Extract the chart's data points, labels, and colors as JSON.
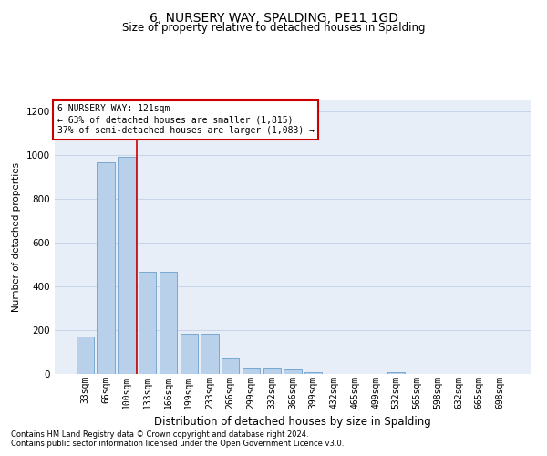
{
  "title": "6, NURSERY WAY, SPALDING, PE11 1GD",
  "subtitle": "Size of property relative to detached houses in Spalding",
  "xlabel": "Distribution of detached houses by size in Spalding",
  "ylabel": "Number of detached properties",
  "categories": [
    "33sqm",
    "66sqm",
    "100sqm",
    "133sqm",
    "166sqm",
    "199sqm",
    "233sqm",
    "266sqm",
    "299sqm",
    "332sqm",
    "366sqm",
    "399sqm",
    "432sqm",
    "465sqm",
    "499sqm",
    "532sqm",
    "565sqm",
    "598sqm",
    "632sqm",
    "665sqm",
    "698sqm"
  ],
  "values": [
    170,
    965,
    990,
    465,
    465,
    185,
    185,
    70,
    25,
    25,
    20,
    10,
    0,
    0,
    0,
    10,
    0,
    0,
    0,
    0,
    0
  ],
  "bar_color": "#b8d0ea",
  "bar_edge_color": "#6aa0cc",
  "grid_color": "#c8d4e8",
  "bg_color": "#e8eef8",
  "property_line_x": 2.5,
  "annotation_box_color": "#cc0000",
  "ylim": [
    0,
    1250
  ],
  "yticks": [
    0,
    200,
    400,
    600,
    800,
    1000,
    1200
  ],
  "footnote1": "Contains HM Land Registry data © Crown copyright and database right 2024.",
  "footnote2": "Contains public sector information licensed under the Open Government Licence v3.0.",
  "title_fontsize": 10,
  "subtitle_fontsize": 8.5,
  "xlabel_fontsize": 8.5,
  "ylabel_fontsize": 7.5,
  "tick_fontsize": 7,
  "ann_fontsize": 7,
  "footnote_fontsize": 6
}
